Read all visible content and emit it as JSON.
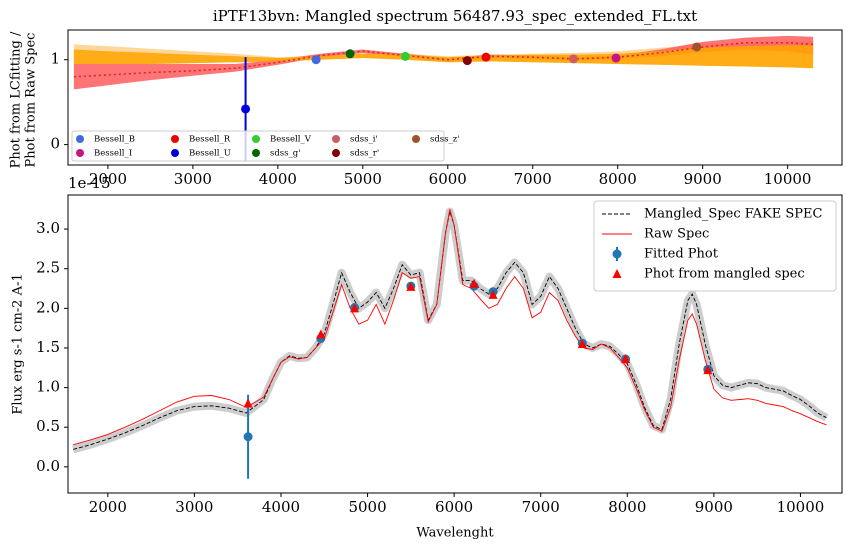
{
  "chart_data": [
    {
      "type": "scatter",
      "title": "iPTF13bvn: Mangled spectrum 56487.93_spec_extended_FL.txt",
      "ylabel": [
        "Phot from LCfitting /",
        "Phot from Raw Spec"
      ],
      "xlim": [
        1530,
        10640
      ],
      "ylim": [
        -0.24,
        1.35
      ],
      "xticks": [
        2000,
        3000,
        4000,
        5000,
        6000,
        7000,
        8000,
        9000,
        10000
      ],
      "yticks": [
        0,
        1
      ],
      "legend": "lower left",
      "curve_x": [
        1600,
        2000,
        2500,
        3000,
        3500,
        4000,
        4500,
        5000,
        5500,
        6000,
        6500,
        7000,
        7500,
        8000,
        8500,
        9000,
        9500,
        10000,
        10300
      ],
      "curve": {
        "color": "#dd2222",
        "style": "dotted",
        "values": [
          0.8,
          0.82,
          0.85,
          0.87,
          0.9,
          0.97,
          1.05,
          1.1,
          1.05,
          1.0,
          1.04,
          1.03,
          1.01,
          1.03,
          1.08,
          1.15,
          1.2,
          1.2,
          1.18
        ]
      },
      "bands": [
        {
          "color": "#ffd08a",
          "lower": [
            0.95,
            0.95,
            0.95,
            0.96,
            0.97,
            0.98,
            1.0,
            1.02,
            1.0,
            0.97,
            0.98,
            0.97,
            0.96,
            0.95,
            0.94,
            0.93,
            0.92,
            0.91,
            0.9
          ],
          "upper": [
            1.18,
            1.16,
            1.13,
            1.1,
            1.07,
            1.03,
            1.05,
            1.08,
            1.07,
            1.04,
            1.06,
            1.07,
            1.08,
            1.1,
            1.14,
            1.18,
            1.2,
            1.22,
            1.22
          ]
        },
        {
          "color": "#ff5c5c",
          "lower": [
            0.65,
            0.7,
            0.76,
            0.81,
            0.86,
            0.94,
            1.03,
            1.08,
            1.03,
            0.98,
            1.02,
            1.01,
            0.99,
            1.01,
            1.04,
            1.09,
            1.12,
            1.1,
            1.06
          ],
          "upper": [
            0.95,
            0.95,
            0.95,
            0.95,
            0.95,
            1.0,
            1.07,
            1.12,
            1.07,
            1.02,
            1.06,
            1.05,
            1.03,
            1.05,
            1.12,
            1.21,
            1.26,
            1.28,
            1.27
          ]
        },
        {
          "color": "#ffa500",
          "lower": [
            0.95,
            0.95,
            0.95,
            0.96,
            0.97,
            0.98,
            1.0,
            1.02,
            1.0,
            0.97,
            0.98,
            0.97,
            0.96,
            0.95,
            0.94,
            0.93,
            0.92,
            0.91,
            0.9
          ],
          "upper": [
            1.12,
            1.1,
            1.08,
            1.06,
            1.04,
            1.02,
            1.04,
            1.07,
            1.06,
            1.03,
            1.05,
            1.06,
            1.06,
            1.07,
            1.1,
            1.14,
            1.16,
            1.17,
            1.17
          ]
        }
      ],
      "series": [
        {
          "name": "Bessell_B",
          "color": "#4169e1",
          "x": [
            4450
          ],
          "values": [
            1.0
          ]
        },
        {
          "name": "Bessell_I",
          "color": "#c71585",
          "x": [
            7980
          ],
          "values": [
            1.02
          ]
        },
        {
          "name": "Bessell_R",
          "color": "#ee0000",
          "x": [
            6450
          ],
          "values": [
            1.03
          ]
        },
        {
          "name": "Bessell_U",
          "color": "#0000dd",
          "x": [
            3620
          ],
          "values": [
            0.42
          ],
          "errors": [
            0.61
          ]
        },
        {
          "name": "Bessell_V",
          "color": "#32cd32",
          "x": [
            5500
          ],
          "values": [
            1.04
          ]
        },
        {
          "name": "sdss_g'",
          "color": "#006400",
          "x": [
            4850
          ],
          "values": [
            1.07
          ]
        },
        {
          "name": "sdss_i'",
          "color": "#cd5c5c",
          "x": [
            7480
          ],
          "values": [
            1.01
          ]
        },
        {
          "name": "sdss_r'",
          "color": "#800000",
          "x": [
            6230
          ],
          "values": [
            0.99
          ]
        },
        {
          "name": "sdss_z'",
          "color": "#a0522d",
          "x": [
            8930
          ],
          "values": [
            1.15
          ]
        }
      ]
    },
    {
      "type": "line",
      "offset_text": "1e-15",
      "xlabel": "Wavelenght",
      "ylabel": "Flux erg s-1 cm-2 A-1",
      "xlim": [
        1540,
        10480
      ],
      "ylim": [
        -0.33,
        3.43
      ],
      "xticks": [
        2000,
        3000,
        4000,
        5000,
        6000,
        7000,
        8000,
        9000,
        10000
      ],
      "yticks": [
        {
          "value": 0,
          "label": "0.0"
        },
        0.5,
        {
          "value": 1,
          "label": "1.0"
        },
        1.5,
        {
          "value": 2,
          "label": "2.0"
        },
        2.5,
        {
          "value": 3,
          "label": "3.0"
        }
      ],
      "legend": "upper right",
      "x": [
        1600,
        1800,
        2000,
        2200,
        2400,
        2600,
        2800,
        3000,
        3200,
        3400,
        3600,
        3800,
        3900,
        4000,
        4100,
        4200,
        4300,
        4400,
        4500,
        4600,
        4700,
        4800,
        4900,
        5000,
        5100,
        5200,
        5300,
        5400,
        5500,
        5600,
        5700,
        5800,
        5900,
        5950,
        6000,
        6100,
        6200,
        6300,
        6400,
        6500,
        6600,
        6700,
        6800,
        6900,
        7000,
        7100,
        7200,
        7300,
        7400,
        7500,
        7600,
        7700,
        7800,
        7900,
        8000,
        8100,
        8200,
        8300,
        8400,
        8500,
        8600,
        8700,
        8750,
        8800,
        8900,
        9000,
        9100,
        9200,
        9300,
        9400,
        9500,
        9600,
        9700,
        9800,
        9900,
        10000,
        10100,
        10200,
        10300
      ],
      "series": [
        {
          "name": "Mangled_Spec FAKE SPEC",
          "color": "#000000",
          "style": "dashed",
          "values": [
            0.22,
            0.28,
            0.35,
            0.43,
            0.52,
            0.62,
            0.71,
            0.76,
            0.77,
            0.74,
            0.68,
            0.85,
            1.1,
            1.32,
            1.4,
            1.37,
            1.38,
            1.5,
            1.68,
            2.05,
            2.45,
            2.2,
            2.0,
            2.08,
            2.2,
            2.0,
            2.25,
            2.55,
            2.42,
            2.45,
            1.85,
            2.05,
            2.95,
            3.22,
            3.05,
            2.35,
            2.35,
            2.25,
            2.18,
            2.25,
            2.45,
            2.58,
            2.45,
            2.05,
            2.15,
            2.4,
            2.25,
            2.0,
            1.75,
            1.55,
            1.5,
            1.55,
            1.52,
            1.42,
            1.3,
            1.05,
            0.75,
            0.52,
            0.47,
            0.85,
            1.55,
            2.1,
            2.18,
            2.05,
            1.55,
            1.15,
            1.03,
            1.0,
            1.03,
            1.06,
            1.05,
            1.0,
            0.98,
            0.96,
            0.9,
            0.85,
            0.77,
            0.68,
            0.62
          ]
        },
        {
          "name": "Raw Spec",
          "color": "#ff0000",
          "style": "solid",
          "values": [
            0.28,
            0.34,
            0.41,
            0.5,
            0.6,
            0.71,
            0.82,
            0.89,
            0.9,
            0.85,
            0.75,
            0.88,
            1.1,
            1.32,
            1.39,
            1.36,
            1.38,
            1.5,
            1.62,
            1.95,
            2.3,
            2.0,
            1.8,
            1.85,
            2.05,
            1.8,
            2.1,
            2.45,
            2.38,
            2.4,
            1.83,
            2.05,
            2.95,
            3.25,
            3.05,
            2.3,
            2.25,
            2.12,
            2.0,
            2.05,
            2.25,
            2.4,
            2.25,
            1.88,
            1.95,
            2.2,
            2.1,
            1.85,
            1.65,
            1.5,
            1.48,
            1.55,
            1.5,
            1.38,
            1.25,
            1.0,
            0.72,
            0.5,
            0.45,
            0.75,
            1.35,
            1.85,
            1.93,
            1.8,
            1.35,
            0.98,
            0.87,
            0.84,
            0.85,
            0.86,
            0.84,
            0.8,
            0.78,
            0.76,
            0.71,
            0.67,
            0.62,
            0.57,
            0.53
          ]
        }
      ],
      "points": [
        {
          "name": "Fitted Phot",
          "color": "#1f77b4",
          "marker": "circle",
          "x": [
            3620,
            4460,
            4850,
            5500,
            6230,
            6450,
            7480,
            7980,
            8930
          ],
          "values": [
            0.38,
            1.62,
            2.01,
            2.28,
            2.28,
            2.21,
            1.56,
            1.36,
            1.23
          ],
          "errors": [
            0.53,
            0.03,
            0.03,
            0.03,
            0.03,
            0.03,
            0.03,
            0.03,
            0.03
          ]
        },
        {
          "name": "Phot from mangled spec",
          "color": "#ff0000",
          "marker": "triangle",
          "x": [
            3620,
            4460,
            4850,
            5500,
            6230,
            6450,
            7480,
            7980,
            8930
          ],
          "values": [
            0.8,
            1.67,
            2.0,
            2.27,
            2.31,
            2.17,
            1.55,
            1.36,
            1.22
          ]
        }
      ]
    }
  ]
}
